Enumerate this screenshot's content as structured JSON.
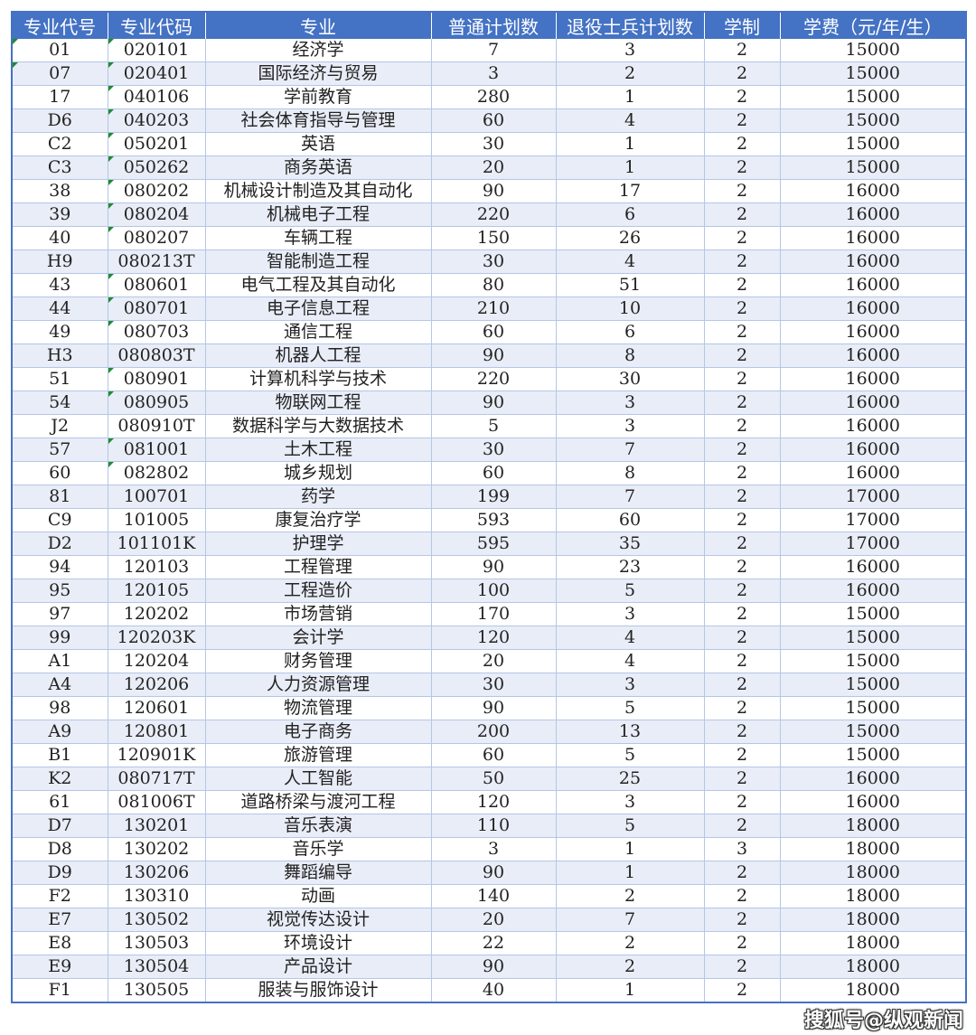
{
  "colors": {
    "header_bg": "#4472C4",
    "alt_row_bg": "#E9EDF7",
    "border": "#B4C6E7",
    "text_flag": "#1E8C2E"
  },
  "headers": [
    "专业代号",
    "专业代码",
    "专业",
    "普通计划数",
    "退役士兵计划数",
    "学制",
    "学费（元/年/生）"
  ],
  "rows": [
    {
      "cells": [
        "01",
        "020101",
        "经济学",
        "7",
        "3",
        "2",
        "15000"
      ],
      "flags": [
        true,
        true
      ]
    },
    {
      "cells": [
        "07",
        "020401",
        "国际经济与贸易",
        "3",
        "2",
        "2",
        "15000"
      ],
      "flags": [
        true,
        true
      ]
    },
    {
      "cells": [
        "17",
        "040106",
        "学前教育",
        "280",
        "1",
        "2",
        "15000"
      ],
      "flags": [
        false,
        true
      ]
    },
    {
      "cells": [
        "D6",
        "040203",
        "社会体育指导与管理",
        "60",
        "4",
        "2",
        "15000"
      ],
      "flags": [
        false,
        true
      ]
    },
    {
      "cells": [
        "C2",
        "050201",
        "英语",
        "30",
        "1",
        "2",
        "15000"
      ],
      "flags": [
        false,
        true
      ]
    },
    {
      "cells": [
        "C3",
        "050262",
        "商务英语",
        "20",
        "1",
        "2",
        "15000"
      ],
      "flags": [
        false,
        true
      ]
    },
    {
      "cells": [
        "38",
        "080202",
        "机械设计制造及其自动化",
        "90",
        "17",
        "2",
        "16000"
      ],
      "flags": [
        false,
        true
      ]
    },
    {
      "cells": [
        "39",
        "080204",
        "机械电子工程",
        "220",
        "6",
        "2",
        "16000"
      ],
      "flags": [
        false,
        true
      ]
    },
    {
      "cells": [
        "40",
        "080207",
        "车辆工程",
        "150",
        "26",
        "2",
        "16000"
      ],
      "flags": [
        false,
        true
      ]
    },
    {
      "cells": [
        "H9",
        "080213T",
        "智能制造工程",
        "30",
        "4",
        "2",
        "16000"
      ],
      "flags": [
        false,
        false
      ]
    },
    {
      "cells": [
        "43",
        "080601",
        "电气工程及其自动化",
        "80",
        "51",
        "2",
        "16000"
      ],
      "flags": [
        false,
        true
      ]
    },
    {
      "cells": [
        "44",
        "080701",
        "电子信息工程",
        "210",
        "10",
        "2",
        "16000"
      ],
      "flags": [
        false,
        true
      ]
    },
    {
      "cells": [
        "49",
        "080703",
        "通信工程",
        "60",
        "6",
        "2",
        "16000"
      ],
      "flags": [
        false,
        true
      ]
    },
    {
      "cells": [
        "H3",
        "080803T",
        "机器人工程",
        "90",
        "8",
        "2",
        "16000"
      ],
      "flags": [
        false,
        false
      ]
    },
    {
      "cells": [
        "51",
        "080901",
        "计算机科学与技术",
        "220",
        "30",
        "2",
        "16000"
      ],
      "flags": [
        false,
        true
      ]
    },
    {
      "cells": [
        "54",
        "080905",
        "物联网工程",
        "90",
        "3",
        "2",
        "16000"
      ],
      "flags": [
        false,
        true
      ]
    },
    {
      "cells": [
        "J2",
        "080910T",
        "数据科学与大数据技术",
        "5",
        "3",
        "2",
        "16000"
      ],
      "flags": [
        false,
        false
      ]
    },
    {
      "cells": [
        "57",
        "081001",
        "土木工程",
        "30",
        "7",
        "2",
        "16000"
      ],
      "flags": [
        false,
        true
      ]
    },
    {
      "cells": [
        "60",
        "082802",
        "城乡规划",
        "60",
        "8",
        "2",
        "16000"
      ],
      "flags": [
        false,
        true
      ]
    },
    {
      "cells": [
        "81",
        "100701",
        "药学",
        "199",
        "7",
        "2",
        "17000"
      ],
      "flags": [
        false,
        false
      ]
    },
    {
      "cells": [
        "C9",
        "101005",
        "康复治疗学",
        "593",
        "60",
        "2",
        "17000"
      ],
      "flags": [
        false,
        false
      ]
    },
    {
      "cells": [
        "D2",
        "101101K",
        "护理学",
        "595",
        "35",
        "2",
        "17000"
      ],
      "flags": [
        false,
        false
      ]
    },
    {
      "cells": [
        "94",
        "120103",
        "工程管理",
        "90",
        "23",
        "2",
        "16000"
      ],
      "flags": [
        false,
        false
      ]
    },
    {
      "cells": [
        "95",
        "120105",
        "工程造价",
        "100",
        "5",
        "2",
        "16000"
      ],
      "flags": [
        false,
        false
      ]
    },
    {
      "cells": [
        "97",
        "120202",
        "市场营销",
        "170",
        "3",
        "2",
        "15000"
      ],
      "flags": [
        false,
        false
      ]
    },
    {
      "cells": [
        "99",
        "120203K",
        "会计学",
        "120",
        "4",
        "2",
        "15000"
      ],
      "flags": [
        false,
        false
      ]
    },
    {
      "cells": [
        "A1",
        "120204",
        "财务管理",
        "20",
        "4",
        "2",
        "15000"
      ],
      "flags": [
        false,
        false
      ]
    },
    {
      "cells": [
        "A4",
        "120206",
        "人力资源管理",
        "30",
        "3",
        "2",
        "15000"
      ],
      "flags": [
        false,
        false
      ]
    },
    {
      "cells": [
        "98",
        "120601",
        "物流管理",
        "90",
        "5",
        "2",
        "15000"
      ],
      "flags": [
        false,
        false
      ]
    },
    {
      "cells": [
        "A9",
        "120801",
        "电子商务",
        "200",
        "13",
        "2",
        "15000"
      ],
      "flags": [
        false,
        false
      ]
    },
    {
      "cells": [
        "B1",
        "120901K",
        "旅游管理",
        "60",
        "5",
        "2",
        "15000"
      ],
      "flags": [
        false,
        false
      ]
    },
    {
      "cells": [
        "K2",
        "080717T",
        "人工智能",
        "50",
        "25",
        "2",
        "16000"
      ],
      "flags": [
        false,
        false
      ]
    },
    {
      "cells": [
        "61",
        "081006T",
        "道路桥梁与渡河工程",
        "120",
        "3",
        "2",
        "16000"
      ],
      "flags": [
        false,
        false
      ]
    },
    {
      "cells": [
        "D7",
        "130201",
        "音乐表演",
        "110",
        "5",
        "2",
        "18000"
      ],
      "flags": [
        false,
        false
      ]
    },
    {
      "cells": [
        "D8",
        "130202",
        "音乐学",
        "3",
        "1",
        "3",
        "18000"
      ],
      "flags": [
        false,
        false
      ]
    },
    {
      "cells": [
        "D9",
        "130206",
        "舞蹈编导",
        "90",
        "1",
        "2",
        "18000"
      ],
      "flags": [
        false,
        false
      ]
    },
    {
      "cells": [
        "F2",
        "130310",
        "动画",
        "140",
        "2",
        "2",
        "18000"
      ],
      "flags": [
        false,
        false
      ]
    },
    {
      "cells": [
        "E7",
        "130502",
        "视觉传达设计",
        "20",
        "7",
        "2",
        "18000"
      ],
      "flags": [
        false,
        false
      ]
    },
    {
      "cells": [
        "E8",
        "130503",
        "环境设计",
        "22",
        "2",
        "2",
        "18000"
      ],
      "flags": [
        false,
        false
      ]
    },
    {
      "cells": [
        "E9",
        "130504",
        "产品设计",
        "90",
        "2",
        "2",
        "18000"
      ],
      "flags": [
        false,
        false
      ]
    },
    {
      "cells": [
        "F1",
        "130505",
        "服装与服饰设计",
        "40",
        "1",
        "2",
        "18000"
      ],
      "flags": [
        false,
        false
      ]
    }
  ],
  "watermark": "搜狐号@纵观新闻"
}
